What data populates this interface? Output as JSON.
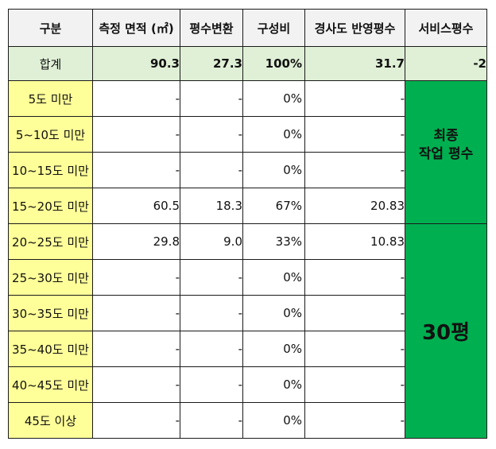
{
  "headers": [
    "구분",
    "측정 면적 (㎡)",
    "평수변환",
    "구성비",
    "경사도 반영평수",
    "서비스평수"
  ],
  "total": {
    "label": "합계",
    "area": "90.3",
    "pyeong": "27.3",
    "ratio": "100%",
    "slope_pyeong": "31.7",
    "service": "-2"
  },
  "rows": [
    {
      "label": "5도 미만",
      "area": "-",
      "pyeong": "-",
      "ratio": "0%",
      "slope_pyeong": "-"
    },
    {
      "label": "5~10도 미만",
      "area": "-",
      "pyeong": "-",
      "ratio": "0%",
      "slope_pyeong": "-"
    },
    {
      "label": "10~15도 미만",
      "area": "-",
      "pyeong": "-",
      "ratio": "0%",
      "slope_pyeong": "-"
    },
    {
      "label": "15~20도 미만",
      "area": "60.5",
      "pyeong": "18.3",
      "ratio": "67%",
      "slope_pyeong": "20.83"
    },
    {
      "label": "20~25도 미만",
      "area": "29.8",
      "pyeong": "9.0",
      "ratio": "33%",
      "slope_pyeong": "10.83"
    },
    {
      "label": "25~30도 미만",
      "area": "-",
      "pyeong": "-",
      "ratio": "0%",
      "slope_pyeong": "-"
    },
    {
      "label": "30~35도 미만",
      "area": "-",
      "pyeong": "-",
      "ratio": "0%",
      "slope_pyeong": "-"
    },
    {
      "label": "35~40도 미만",
      "area": "-",
      "pyeong": "-",
      "ratio": "0%",
      "slope_pyeong": "-"
    },
    {
      "label": "40~45도 미만",
      "area": "-",
      "pyeong": "-",
      "ratio": "0%",
      "slope_pyeong": "-"
    },
    {
      "label": "45도 이상",
      "area": "-",
      "pyeong": "-",
      "ratio": "0%",
      "slope_pyeong": "-"
    }
  ],
  "side_note_top": {
    "line1": "최종",
    "line2": "작업 평수"
  },
  "side_note_bottom": "30평",
  "colors": {
    "header_bg": "#f2f2f2",
    "total_bg": "#dff0d6",
    "label_bg": "#ffff99",
    "green": "#00b050",
    "negative": "#ff0000"
  }
}
